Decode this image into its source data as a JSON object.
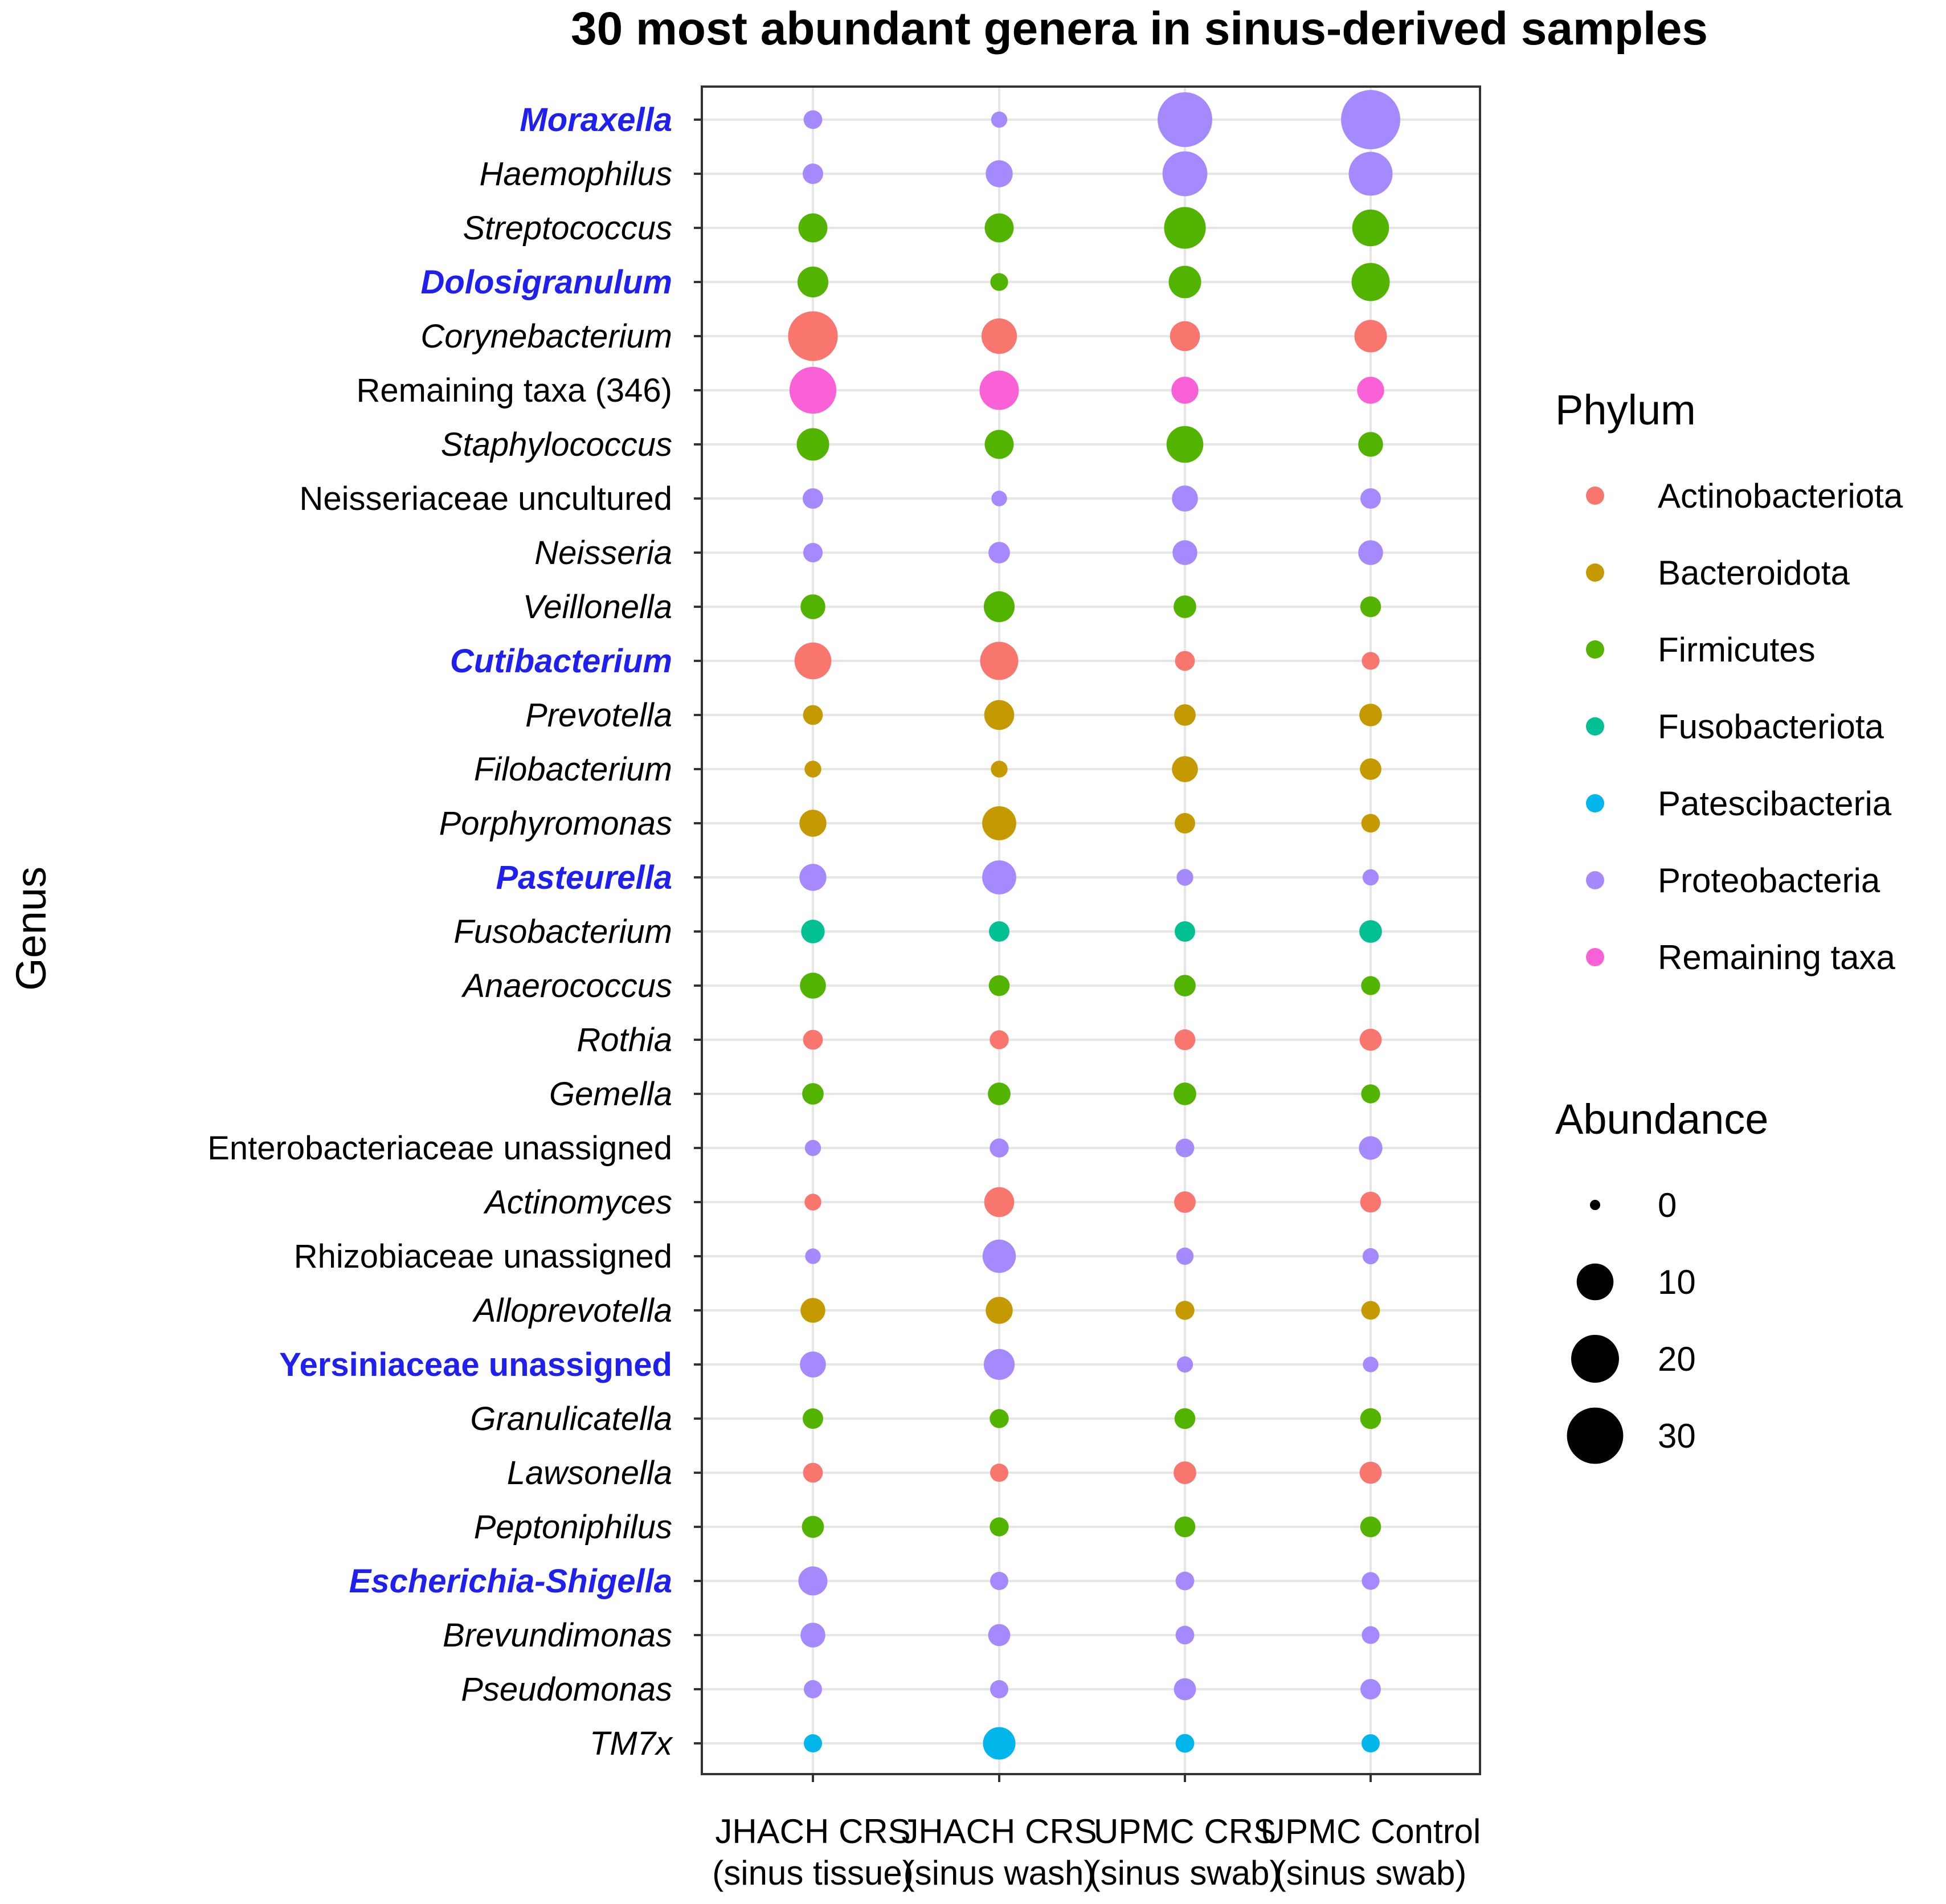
{
  "chart_data": {
    "type": "bubble",
    "title": "30 most abundant genera in sinus-derived samples",
    "ylabel": "Genus",
    "xlabel": "",
    "x_categories": [
      {
        "line1": "JHACH CRS",
        "line2": "(sinus tissue)"
      },
      {
        "line1": "JHACH CRS",
        "line2": "(sinus wash)"
      },
      {
        "line1": "UPMC CRS",
        "line2": "(sinus swab)"
      },
      {
        "line1": "UPMC Control",
        "line2": "(sinus swab)"
      }
    ],
    "phyla": {
      "Actinobacteriota": "#F8766D",
      "Bacteroidota": "#C49A00",
      "Firmicutes": "#53B400",
      "Fusobacteriota": "#00C094",
      "Patescibacteria": "#00B6EB",
      "Proteobacteria": "#A58AFF",
      "Remaining taxa": "#FB61D7"
    },
    "highlight_color": "#1F1FF0",
    "genera": [
      {
        "name": "Moraxella",
        "italic": true,
        "highlight": true,
        "phylum": "Proteobacteria",
        "values": [
          1,
          0.5,
          28,
          34
        ]
      },
      {
        "name": "Haemophilus",
        "italic": true,
        "highlight": false,
        "phylum": "Proteobacteria",
        "values": [
          1.5,
          4,
          17,
          16
        ]
      },
      {
        "name": "Streptococcus",
        "italic": true,
        "highlight": false,
        "phylum": "Firmicutes",
        "values": [
          5,
          5,
          14,
          10
        ]
      },
      {
        "name": "Dolosigranulum",
        "italic": true,
        "highlight": true,
        "phylum": "Firmicutes",
        "values": [
          6,
          0.8,
          7,
          11
        ]
      },
      {
        "name": "Corynebacterium",
        "italic": true,
        "highlight": false,
        "phylum": "Actinobacteriota",
        "values": [
          22,
          9,
          5.5,
          7
        ]
      },
      {
        "name": "Remaining taxa (346)",
        "italic": false,
        "highlight": false,
        "phylum": "Remaining taxa",
        "values": [
          19,
          12,
          4,
          4
        ]
      },
      {
        "name": "Staphylococcus",
        "italic": true,
        "highlight": false,
        "phylum": "Firmicutes",
        "values": [
          7,
          5,
          10,
          3
        ]
      },
      {
        "name": "Neisseriaceae uncultured",
        "italic": false,
        "highlight": false,
        "phylum": "Proteobacteria",
        "values": [
          1.5,
          0.4,
          3.5,
          1.5
        ]
      },
      {
        "name": "Neisseria",
        "italic": true,
        "highlight": false,
        "phylum": "Proteobacteria",
        "values": [
          1.2,
          1.8,
          3,
          3
        ]
      },
      {
        "name": "Veillonella",
        "italic": true,
        "highlight": false,
        "phylum": "Firmicutes",
        "values": [
          3,
          6,
          2.2,
          1.6
        ]
      },
      {
        "name": "Cutibacterium",
        "italic": true,
        "highlight": true,
        "phylum": "Actinobacteriota",
        "values": [
          10,
          11,
          1.3,
          0.8
        ]
      },
      {
        "name": "Prevotella",
        "italic": true,
        "highlight": false,
        "phylum": "Bacteroidota",
        "values": [
          1.3,
          5.5,
          1.8,
          2.2
        ]
      },
      {
        "name": "Filobacterium",
        "italic": true,
        "highlight": false,
        "phylum": "Bacteroidota",
        "values": [
          0.6,
          0.6,
          3.5,
          1.8
        ]
      },
      {
        "name": "Porphyromonas",
        "italic": true,
        "highlight": false,
        "phylum": "Bacteroidota",
        "values": [
          4,
          8,
          1.5,
          1
        ]
      },
      {
        "name": "Pasteurella",
        "italic": true,
        "highlight": true,
        "phylum": "Proteobacteria",
        "values": [
          4,
          8,
          0.6,
          0.5
        ]
      },
      {
        "name": "Fusobacterium",
        "italic": true,
        "highlight": false,
        "phylum": "Fusobacteriota",
        "values": [
          2.5,
          1.5,
          1.5,
          2.2
        ]
      },
      {
        "name": "Anaerococcus",
        "italic": true,
        "highlight": false,
        "phylum": "Firmicutes",
        "values": [
          3.5,
          1.6,
          1.8,
          1.1
        ]
      },
      {
        "name": "Rothia",
        "italic": true,
        "highlight": false,
        "phylum": "Actinobacteriota",
        "values": [
          1.3,
          1.1,
          1.6,
          2
        ]
      },
      {
        "name": "Gemella",
        "italic": true,
        "highlight": false,
        "phylum": "Firmicutes",
        "values": [
          1.8,
          2.2,
          2.2,
          1.1
        ]
      },
      {
        "name": "Enterobacteriaceae unassigned",
        "italic": false,
        "highlight": false,
        "phylum": "Proteobacteria",
        "values": [
          0.5,
          1.1,
          1,
          2.5
        ]
      },
      {
        "name": "Actinomyces",
        "italic": true,
        "highlight": false,
        "phylum": "Actinobacteriota",
        "values": [
          0.6,
          5.5,
          1.8,
          1.6
        ]
      },
      {
        "name": "Rhizobiaceae unassigned",
        "italic": false,
        "highlight": false,
        "phylum": "Proteobacteria",
        "values": [
          0.4,
          7.5,
          0.7,
          0.5
        ]
      },
      {
        "name": "Alloprevotella",
        "italic": true,
        "highlight": false,
        "phylum": "Bacteroidota",
        "values": [
          3,
          4,
          1.1,
          1
        ]
      },
      {
        "name": "Yersiniaceae unassigned",
        "italic": false,
        "highlight": true,
        "phylum": "Proteobacteria",
        "values": [
          3.5,
          6,
          0.5,
          0.4
        ]
      },
      {
        "name": "Granulicatella",
        "italic": true,
        "highlight": false,
        "phylum": "Firmicutes",
        "values": [
          1.5,
          1.1,
          1.6,
          1.6
        ]
      },
      {
        "name": "Lawsonella",
        "italic": true,
        "highlight": false,
        "phylum": "Actinobacteriota",
        "values": [
          1.3,
          0.9,
          2.2,
          2
        ]
      },
      {
        "name": "Peptoniphilus",
        "italic": true,
        "highlight": false,
        "phylum": "Firmicutes",
        "values": [
          2,
          1.1,
          1.6,
          1.6
        ]
      },
      {
        "name": "Escherichia-Shigella",
        "italic": true,
        "highlight": true,
        "phylum": "Proteobacteria",
        "values": [
          5,
          0.9,
          1,
          0.8
        ]
      },
      {
        "name": "Brevundimonas",
        "italic": true,
        "highlight": false,
        "phylum": "Proteobacteria",
        "values": [
          3,
          2,
          1,
          0.8
        ]
      },
      {
        "name": "Pseudomonas",
        "italic": true,
        "highlight": false,
        "phylum": "Proteobacteria",
        "values": [
          0.9,
          0.9,
          2,
          1.5
        ]
      },
      {
        "name": "TM7x",
        "italic": true,
        "highlight": false,
        "phylum": "Patescibacteria",
        "values": [
          0.9,
          7,
          1,
          0.9
        ]
      }
    ],
    "legend": {
      "color_title": "Phylum",
      "color_items": [
        "Actinobacteriota",
        "Bacteroidota",
        "Firmicutes",
        "Fusobacteriota",
        "Patescibacteria",
        "Proteobacteria",
        "Remaining taxa"
      ],
      "size_title": "Abundance",
      "size_items": [
        0,
        10,
        20,
        30
      ]
    }
  }
}
